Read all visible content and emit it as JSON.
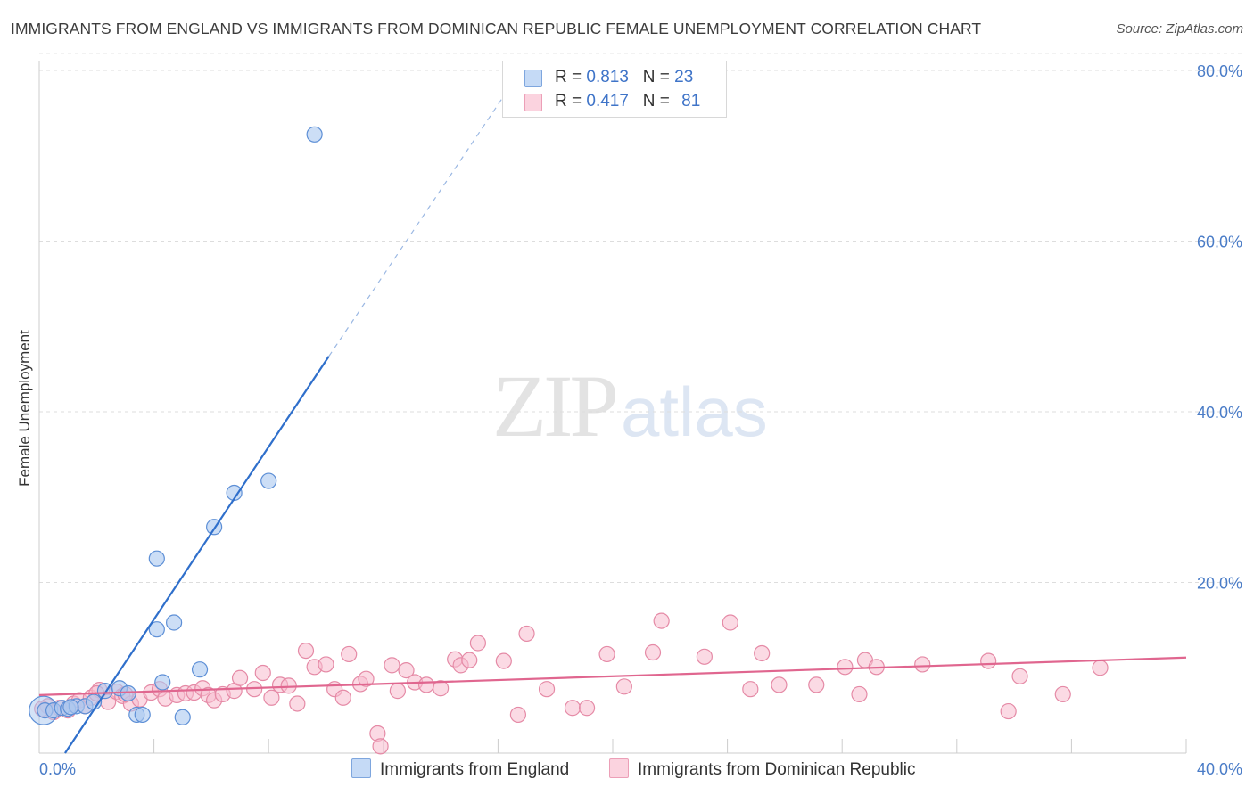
{
  "header": {
    "title": "IMMIGRANTS FROM ENGLAND VS IMMIGRANTS FROM DOMINICAN REPUBLIC FEMALE UNEMPLOYMENT CORRELATION CHART",
    "source": "Source: ZipAtlas.com"
  },
  "watermark": {
    "zip": "ZIP",
    "atlas": "atlas"
  },
  "legend": {
    "rows": [
      {
        "r_label": "R = ",
        "r_value": "0.813",
        "n_label": "N = ",
        "n_value": "23"
      },
      {
        "r_label": "R = ",
        "r_value": "0.417",
        "n_label": "N = ",
        "n_value": "81"
      }
    ]
  },
  "bottom_legend": {
    "england": "Immigrants from England",
    "dominican": "Immigrants from Dominican Republic"
  },
  "colors": {
    "england_fill": "#aac8f0",
    "england_stroke": "#5d8fd6",
    "england_line": "#2f6fcb",
    "dominican_fill": "#f8bccd",
    "dominican_stroke": "#e58aa6",
    "dominican_line": "#e0668f",
    "grid": "#dddddd",
    "tick_text": "#4a7cc7"
  },
  "chart_data": {
    "type": "scatter",
    "title": "IMMIGRANTS FROM ENGLAND VS IMMIGRANTS FROM DOMINICAN REPUBLIC FEMALE UNEMPLOYMENT CORRELATION CHART",
    "xlabel": "",
    "ylabel": "Female Unemployment",
    "xlim": [
      0,
      40
    ],
    "ylim": [
      0,
      82
    ],
    "x_tick_labels": [
      "0.0%",
      "40.0%"
    ],
    "y_ticks": [
      20,
      40,
      60,
      80
    ],
    "y_tick_labels": [
      "20.0%",
      "40.0%",
      "60.0%",
      "80.0%"
    ],
    "grid": true,
    "legend_position": "top-center",
    "series": [
      {
        "name": "Immigrants from England",
        "r": 0.813,
        "n": 23,
        "points": [
          [
            0.2,
            5.0
          ],
          [
            0.5,
            5.0
          ],
          [
            0.8,
            5.3
          ],
          [
            1.0,
            5.2
          ],
          [
            1.3,
            5.5
          ],
          [
            1.6,
            5.5
          ],
          [
            1.9,
            6.0
          ],
          [
            2.3,
            7.3
          ],
          [
            2.8,
            7.6
          ],
          [
            3.1,
            7.0
          ],
          [
            3.4,
            4.5
          ],
          [
            3.6,
            4.5
          ],
          [
            4.1,
            22.8
          ],
          [
            4.1,
            14.5
          ],
          [
            4.3,
            8.3
          ],
          [
            4.7,
            15.3
          ],
          [
            5.0,
            4.2
          ],
          [
            5.6,
            9.8
          ],
          [
            6.1,
            26.5
          ],
          [
            6.8,
            30.5
          ],
          [
            8.0,
            31.9
          ],
          [
            9.6,
            72.5
          ],
          [
            1.1,
            5.4
          ]
        ],
        "trend": {
          "x_start": 0.9,
          "y_start": 0,
          "x_solid_end": 10.1,
          "y_solid_end": 46.5,
          "x_dash_end": 16.5,
          "y_dash_end": 78.5
        }
      },
      {
        "name": "Immigrants from Dominican Republic",
        "r": 0.417,
        "n": 81,
        "points": [
          [
            0.3,
            5.5
          ],
          [
            0.5,
            4.8
          ],
          [
            0.7,
            5.3
          ],
          [
            1.0,
            5.0
          ],
          [
            1.2,
            5.8
          ],
          [
            1.4,
            6.2
          ],
          [
            1.6,
            5.5
          ],
          [
            1.8,
            6.5
          ],
          [
            2.1,
            7.4
          ],
          [
            2.4,
            6.0
          ],
          [
            2.7,
            7.2
          ],
          [
            2.9,
            6.7
          ],
          [
            3.2,
            5.8
          ],
          [
            3.5,
            6.3
          ],
          [
            3.9,
            7.1
          ],
          [
            4.2,
            7.5
          ],
          [
            4.4,
            6.4
          ],
          [
            4.8,
            6.8
          ],
          [
            5.1,
            7.0
          ],
          [
            5.4,
            7.1
          ],
          [
            5.7,
            7.6
          ],
          [
            5.9,
            6.8
          ],
          [
            6.1,
            6.2
          ],
          [
            6.4,
            6.9
          ],
          [
            6.8,
            7.3
          ],
          [
            7.0,
            8.8
          ],
          [
            7.5,
            7.5
          ],
          [
            7.8,
            9.4
          ],
          [
            8.1,
            6.5
          ],
          [
            8.4,
            8.0
          ],
          [
            8.7,
            7.9
          ],
          [
            9.0,
            5.8
          ],
          [
            9.3,
            12.0
          ],
          [
            9.6,
            10.1
          ],
          [
            10.0,
            10.4
          ],
          [
            10.3,
            7.5
          ],
          [
            10.6,
            6.5
          ],
          [
            10.8,
            11.6
          ],
          [
            11.2,
            8.1
          ],
          [
            11.4,
            8.7
          ],
          [
            11.8,
            2.3
          ],
          [
            11.9,
            0.8
          ],
          [
            12.3,
            10.3
          ],
          [
            12.5,
            7.3
          ],
          [
            12.8,
            9.7
          ],
          [
            13.1,
            8.3
          ],
          [
            13.5,
            8.0
          ],
          [
            14.0,
            7.6
          ],
          [
            14.5,
            11.0
          ],
          [
            14.7,
            10.3
          ],
          [
            15.0,
            10.9
          ],
          [
            15.3,
            12.9
          ],
          [
            16.2,
            10.8
          ],
          [
            16.7,
            4.5
          ],
          [
            17.0,
            14.0
          ],
          [
            17.7,
            7.5
          ],
          [
            18.6,
            5.3
          ],
          [
            19.1,
            5.3
          ],
          [
            19.8,
            11.6
          ],
          [
            20.4,
            7.8
          ],
          [
            21.4,
            11.8
          ],
          [
            21.7,
            15.5
          ],
          [
            23.2,
            11.3
          ],
          [
            24.1,
            15.3
          ],
          [
            24.8,
            7.5
          ],
          [
            25.2,
            11.7
          ],
          [
            25.8,
            8.0
          ],
          [
            27.1,
            8.0
          ],
          [
            28.1,
            10.1
          ],
          [
            28.6,
            6.9
          ],
          [
            28.8,
            10.9
          ],
          [
            29.2,
            10.1
          ],
          [
            30.8,
            10.4
          ],
          [
            33.1,
            10.8
          ],
          [
            33.8,
            4.9
          ],
          [
            34.2,
            9.0
          ],
          [
            35.7,
            6.9
          ],
          [
            37.0,
            10.0
          ],
          [
            2.0,
            7.0
          ],
          [
            3.0,
            6.9
          ],
          [
            0.1,
            5.2
          ]
        ],
        "trend": {
          "x_start": 0,
          "y_start": 6.8,
          "x_end": 40,
          "y_end": 11.2
        }
      }
    ]
  }
}
